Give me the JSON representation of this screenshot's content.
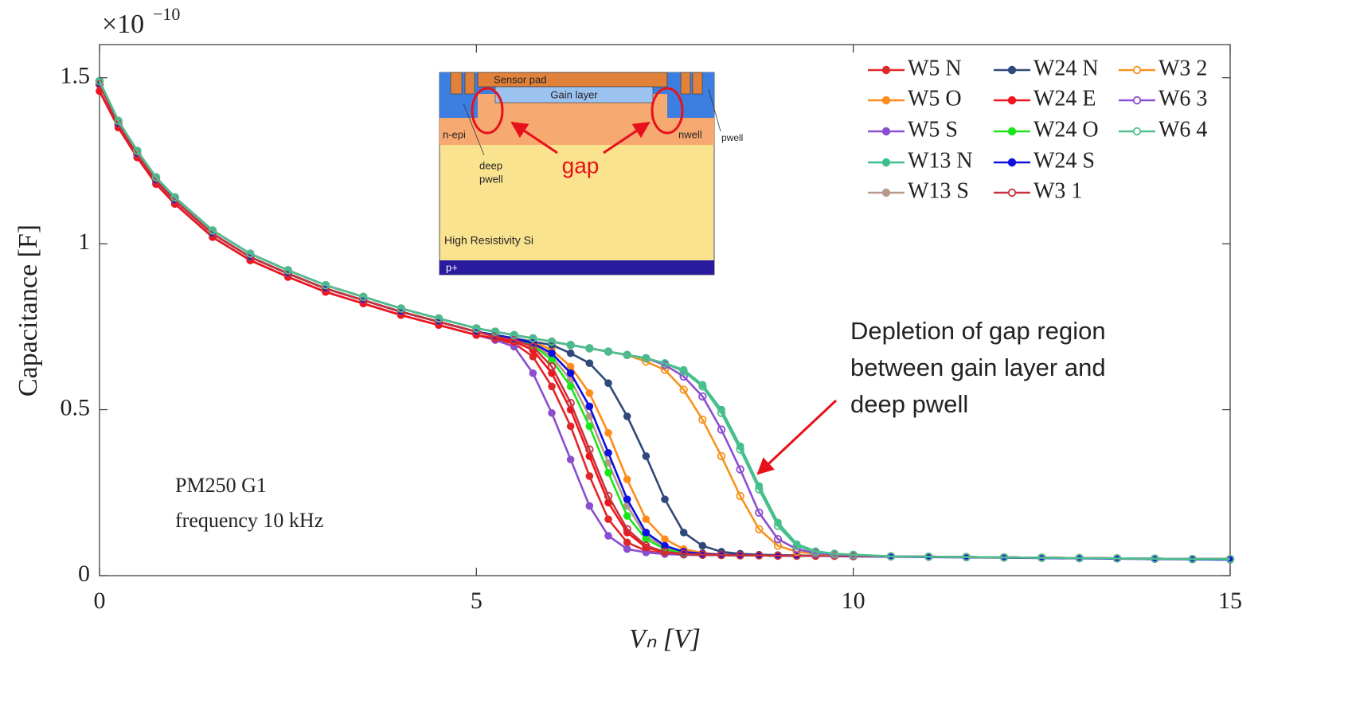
{
  "chart_data": {
    "type": "line",
    "ylabel": "Capacitance [F]",
    "xlabel": "Vₙ [V]",
    "y_multiplier": {
      "base": "×10",
      "exponent": "−10"
    },
    "xlim": [
      0,
      15
    ],
    "ylim": [
      0,
      1.6
    ],
    "xticks": [
      0,
      5,
      10,
      15
    ],
    "yticks": [
      0,
      0.5,
      1,
      1.5
    ],
    "legend": "top-right",
    "notes": [
      "PM250 G1",
      "frequency 10 kHz"
    ],
    "callout": [
      "Depletion of gap region",
      "between gain layer and",
      "deep pwell"
    ],
    "inset": {
      "sensor_pad": "Sensor pad",
      "gain_layer": "Gain layer",
      "n_epi": "n-epi",
      "nwell": "nwell",
      "pwell": "pwell",
      "deep_pwell": [
        "deep",
        "pwell"
      ],
      "gap": "gap",
      "substrate": "High Resistivity Si",
      "p_plus": "p+"
    },
    "x": [
      0,
      0.25,
      0.5,
      0.75,
      1,
      1.5,
      2,
      2.5,
      3,
      3.5,
      4,
      4.5,
      5,
      5.25,
      5.5,
      5.75,
      6,
      6.25,
      6.5,
      6.75,
      7,
      7.25,
      7.5,
      7.75,
      8,
      8.25,
      8.5,
      8.75,
      9,
      9.25,
      9.5,
      9.75,
      10,
      10.5,
      11,
      11.5,
      12,
      12.5,
      13,
      13.5,
      14,
      14.5,
      15
    ],
    "series": [
      {
        "name": "W5 N",
        "color": "#e0282a",
        "marker": "filled",
        "values": [
          1.46,
          1.35,
          1.26,
          1.18,
          1.12,
          1.02,
          0.95,
          0.9,
          0.855,
          0.82,
          0.785,
          0.755,
          0.725,
          0.71,
          0.7,
          0.66,
          0.57,
          0.45,
          0.3,
          0.17,
          0.1,
          0.075,
          0.066,
          0.063,
          0.062,
          0.062,
          0.061,
          0.061,
          0.06,
          0.06,
          0.06,
          0.06,
          0.059,
          0.058,
          0.057,
          0.056,
          0.055,
          0.054,
          0.053,
          0.052,
          0.051,
          0.05,
          0.05
        ]
      },
      {
        "name": "W5 O",
        "color": "#ff8c1a",
        "marker": "filled",
        "values": [
          1.48,
          1.36,
          1.27,
          1.19,
          1.13,
          1.03,
          0.96,
          0.91,
          0.865,
          0.83,
          0.795,
          0.765,
          0.735,
          0.725,
          0.715,
          0.705,
          0.68,
          0.63,
          0.55,
          0.43,
          0.29,
          0.17,
          0.11,
          0.08,
          0.068,
          0.064,
          0.062,
          0.061,
          0.061,
          0.06,
          0.06,
          0.06,
          0.059,
          0.058,
          0.057,
          0.056,
          0.055,
          0.054,
          0.053,
          0.052,
          0.051,
          0.05,
          0.05
        ]
      },
      {
        "name": "W5 S",
        "color": "#8a4fcf",
        "marker": "filled",
        "values": [
          1.46,
          1.35,
          1.26,
          1.18,
          1.12,
          1.02,
          0.95,
          0.9,
          0.855,
          0.82,
          0.785,
          0.755,
          0.725,
          0.71,
          0.69,
          0.61,
          0.49,
          0.35,
          0.21,
          0.12,
          0.08,
          0.07,
          0.065,
          0.063,
          0.062,
          0.062,
          0.061,
          0.061,
          0.06,
          0.06,
          0.06,
          0.06,
          0.059,
          0.058,
          0.057,
          0.056,
          0.055,
          0.054,
          0.053,
          0.052,
          0.051,
          0.05,
          0.05
        ]
      },
      {
        "name": "W13 N",
        "color": "#3cbf8a",
        "marker": "filled",
        "values": [
          1.49,
          1.37,
          1.28,
          1.2,
          1.14,
          1.04,
          0.97,
          0.92,
          0.875,
          0.84,
          0.805,
          0.775,
          0.745,
          0.735,
          0.725,
          0.715,
          0.705,
          0.695,
          0.685,
          0.675,
          0.665,
          0.655,
          0.64,
          0.62,
          0.575,
          0.5,
          0.39,
          0.27,
          0.16,
          0.095,
          0.074,
          0.066,
          0.063,
          0.058,
          0.057,
          0.056,
          0.055,
          0.054,
          0.053,
          0.052,
          0.051,
          0.05,
          0.05
        ]
      },
      {
        "name": "W13 S",
        "color": "#b59a8a",
        "marker": "filled",
        "values": [
          1.48,
          1.36,
          1.27,
          1.19,
          1.13,
          1.03,
          0.96,
          0.91,
          0.865,
          0.83,
          0.795,
          0.765,
          0.735,
          0.725,
          0.715,
          0.7,
          0.66,
          0.59,
          0.48,
          0.34,
          0.21,
          0.12,
          0.085,
          0.07,
          0.065,
          0.063,
          0.062,
          0.061,
          0.061,
          0.06,
          0.06,
          0.06,
          0.059,
          0.058,
          0.057,
          0.056,
          0.055,
          0.054,
          0.053,
          0.052,
          0.051,
          0.05,
          0.05
        ]
      },
      {
        "name": "W24 N",
        "color": "#2f4a7a",
        "marker": "filled",
        "values": [
          1.48,
          1.36,
          1.27,
          1.19,
          1.13,
          1.03,
          0.96,
          0.91,
          0.865,
          0.83,
          0.795,
          0.765,
          0.735,
          0.725,
          0.715,
          0.705,
          0.695,
          0.67,
          0.64,
          0.58,
          0.48,
          0.36,
          0.23,
          0.13,
          0.09,
          0.072,
          0.066,
          0.063,
          0.062,
          0.061,
          0.06,
          0.06,
          0.059,
          0.058,
          0.057,
          0.056,
          0.055,
          0.054,
          0.053,
          0.052,
          0.051,
          0.05,
          0.05
        ]
      },
      {
        "name": "W24 E",
        "color": "#f0151a",
        "marker": "filled",
        "values": [
          1.46,
          1.35,
          1.26,
          1.18,
          1.12,
          1.02,
          0.95,
          0.9,
          0.855,
          0.82,
          0.785,
          0.755,
          0.725,
          0.715,
          0.705,
          0.68,
          0.61,
          0.5,
          0.36,
          0.22,
          0.13,
          0.085,
          0.07,
          0.065,
          0.063,
          0.062,
          0.061,
          0.061,
          0.06,
          0.06,
          0.06,
          0.06,
          0.059,
          0.058,
          0.057,
          0.056,
          0.055,
          0.054,
          0.053,
          0.052,
          0.051,
          0.05,
          0.05
        ]
      },
      {
        "name": "W24 O",
        "color": "#1be61b",
        "marker": "filled",
        "values": [
          1.48,
          1.36,
          1.27,
          1.19,
          1.13,
          1.03,
          0.96,
          0.91,
          0.865,
          0.83,
          0.795,
          0.765,
          0.735,
          0.725,
          0.715,
          0.695,
          0.65,
          0.57,
          0.45,
          0.31,
          0.18,
          0.11,
          0.08,
          0.068,
          0.064,
          0.062,
          0.061,
          0.061,
          0.06,
          0.06,
          0.06,
          0.06,
          0.059,
          0.058,
          0.057,
          0.056,
          0.055,
          0.054,
          0.053,
          0.052,
          0.051,
          0.05,
          0.05
        ]
      },
      {
        "name": "W24 S",
        "color": "#1010e0",
        "marker": "filled",
        "values": [
          1.48,
          1.36,
          1.27,
          1.19,
          1.13,
          1.03,
          0.96,
          0.91,
          0.865,
          0.83,
          0.795,
          0.765,
          0.735,
          0.725,
          0.715,
          0.7,
          0.67,
          0.61,
          0.51,
          0.37,
          0.23,
          0.13,
          0.09,
          0.072,
          0.066,
          0.063,
          0.062,
          0.061,
          0.06,
          0.06,
          0.06,
          0.059,
          0.058,
          0.057,
          0.056,
          0.055,
          0.054,
          0.053,
          0.052,
          0.051,
          0.05,
          0.049,
          0.048
        ]
      },
      {
        "name": "W3 1",
        "color": "#c8323c",
        "marker": "open",
        "values": [
          1.48,
          1.36,
          1.27,
          1.19,
          1.13,
          1.03,
          0.96,
          0.91,
          0.865,
          0.83,
          0.795,
          0.765,
          0.735,
          0.72,
          0.71,
          0.69,
          0.63,
          0.52,
          0.38,
          0.24,
          0.14,
          0.09,
          0.072,
          0.066,
          0.063,
          0.062,
          0.061,
          0.061,
          0.06,
          0.06,
          0.06,
          0.06,
          0.059,
          0.058,
          0.057,
          0.056,
          0.055,
          0.054,
          0.053,
          0.052,
          0.051,
          0.05,
          0.05
        ]
      },
      {
        "name": "W3 2",
        "color": "#f5941d",
        "marker": "open",
        "values": [
          1.49,
          1.37,
          1.28,
          1.2,
          1.14,
          1.04,
          0.97,
          0.92,
          0.875,
          0.84,
          0.805,
          0.775,
          0.745,
          0.735,
          0.725,
          0.715,
          0.705,
          0.695,
          0.685,
          0.675,
          0.665,
          0.645,
          0.62,
          0.56,
          0.47,
          0.36,
          0.24,
          0.14,
          0.09,
          0.072,
          0.066,
          0.063,
          0.062,
          0.058,
          0.057,
          0.056,
          0.055,
          0.054,
          0.053,
          0.052,
          0.051,
          0.05,
          0.05
        ]
      },
      {
        "name": "W6 3",
        "color": "#8c4fd1",
        "marker": "open",
        "values": [
          1.49,
          1.37,
          1.28,
          1.2,
          1.14,
          1.04,
          0.97,
          0.92,
          0.875,
          0.84,
          0.805,
          0.775,
          0.745,
          0.735,
          0.725,
          0.715,
          0.705,
          0.695,
          0.685,
          0.675,
          0.665,
          0.655,
          0.635,
          0.6,
          0.54,
          0.44,
          0.32,
          0.19,
          0.11,
          0.08,
          0.068,
          0.064,
          0.062,
          0.058,
          0.057,
          0.056,
          0.055,
          0.054,
          0.053,
          0.052,
          0.051,
          0.05,
          0.05
        ]
      },
      {
        "name": "W6 4",
        "color": "#4cbf8e",
        "marker": "open",
        "values": [
          1.49,
          1.37,
          1.28,
          1.2,
          1.14,
          1.04,
          0.97,
          0.92,
          0.875,
          0.84,
          0.805,
          0.775,
          0.745,
          0.735,
          0.725,
          0.715,
          0.705,
          0.695,
          0.685,
          0.675,
          0.665,
          0.655,
          0.64,
          0.615,
          0.57,
          0.49,
          0.38,
          0.26,
          0.15,
          0.09,
          0.072,
          0.066,
          0.063,
          0.058,
          0.057,
          0.056,
          0.055,
          0.054,
          0.053,
          0.052,
          0.051,
          0.05,
          0.05
        ]
      }
    ]
  }
}
